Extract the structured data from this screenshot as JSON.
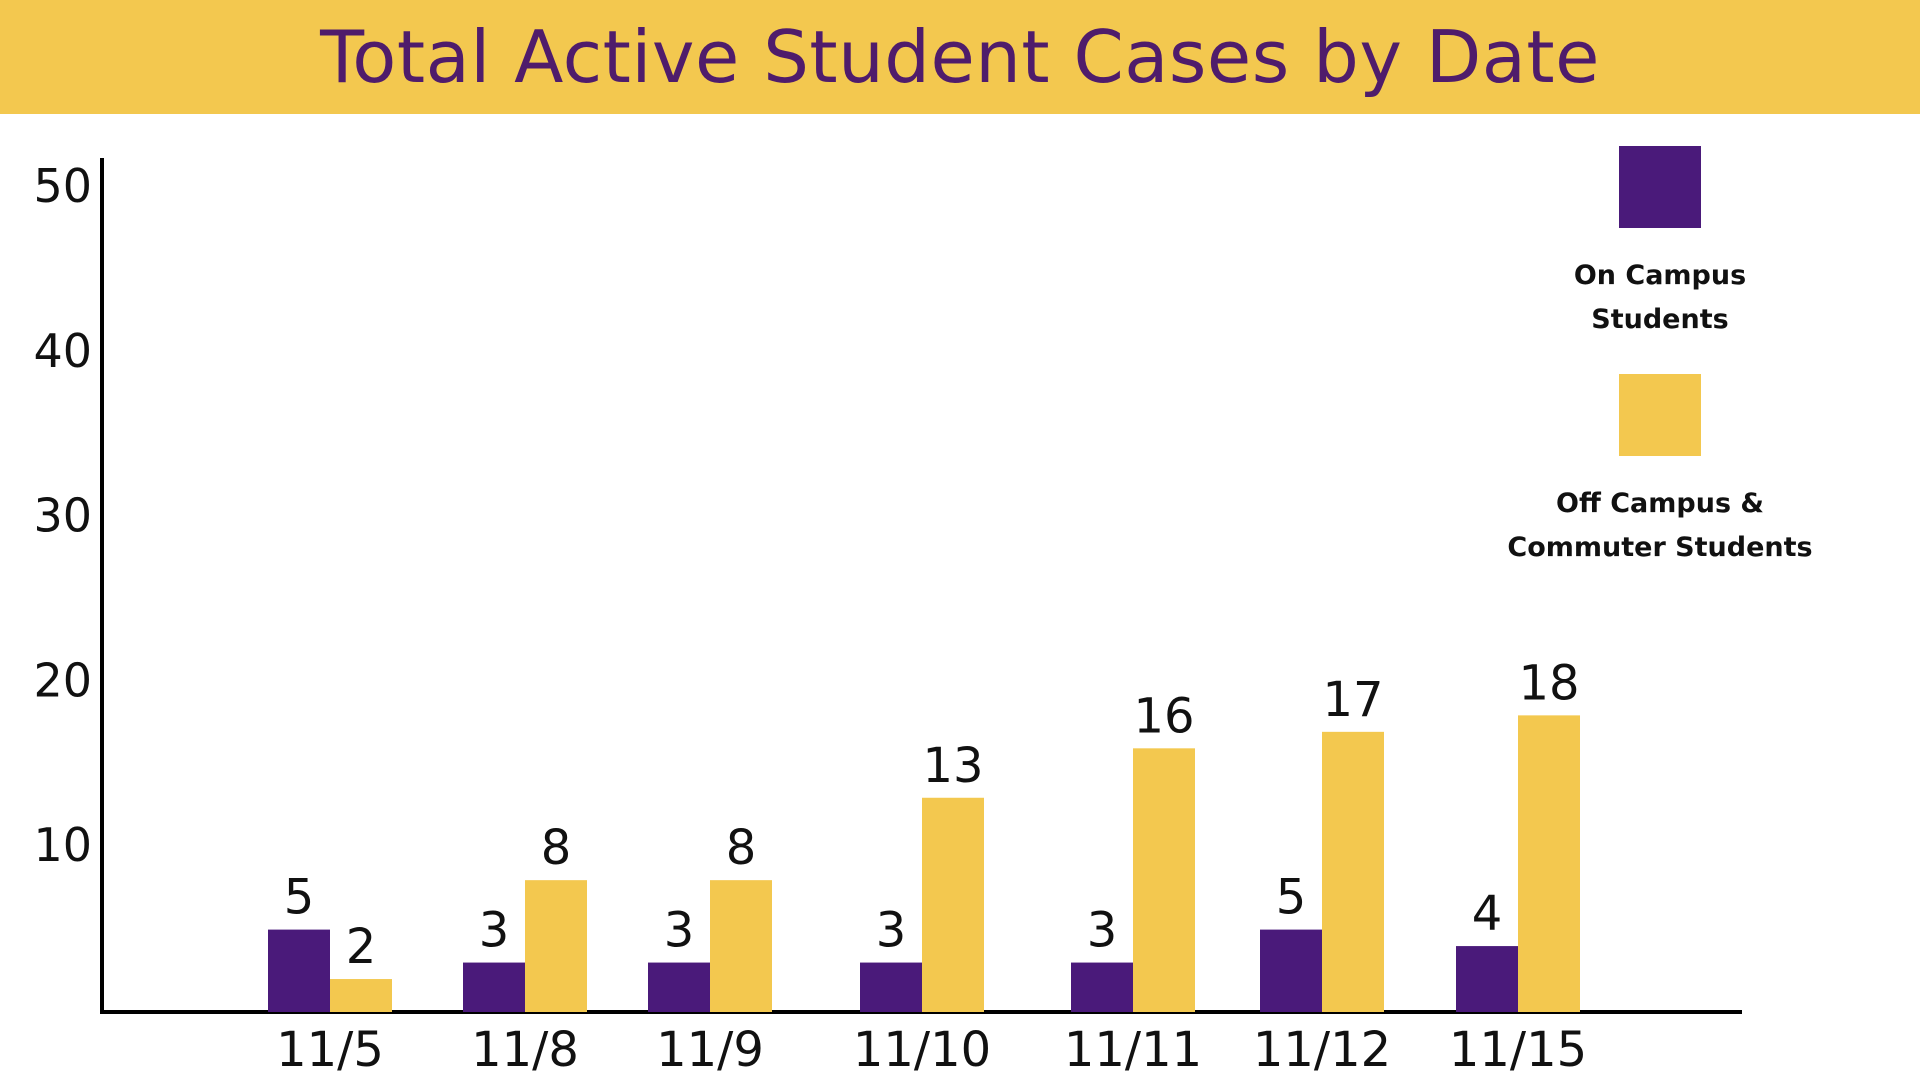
{
  "colors": {
    "banner": "#f3c84f",
    "title_text": "#4f1c6b",
    "on_campus": "#4a1a7a",
    "off_campus": "#f3c84f",
    "axis": "#000000"
  },
  "chart_data": {
    "type": "bar",
    "title": "Total Active Student Cases by Date",
    "xlabel": "",
    "ylabel": "",
    "categories": [
      "11/5",
      "11/8",
      "11/9",
      "11/10",
      "11/11",
      "11/12",
      "11/15"
    ],
    "series": [
      {
        "name": "On Campus Students",
        "values": [
          5,
          3,
          3,
          3,
          3,
          5,
          4
        ]
      },
      {
        "name": "Off Campus & Commuter Students",
        "values": [
          2,
          8,
          8,
          13,
          16,
          17,
          18
        ]
      }
    ],
    "y_ticks": [
      "10",
      "20",
      "30",
      "40",
      "50"
    ],
    "ylim": [
      0,
      50
    ],
    "grid": false,
    "legend_position": "right"
  },
  "legend": {
    "items": [
      {
        "label": "On Campus\nStudents"
      },
      {
        "label": "Off Campus &\nCommuter Students"
      }
    ]
  }
}
